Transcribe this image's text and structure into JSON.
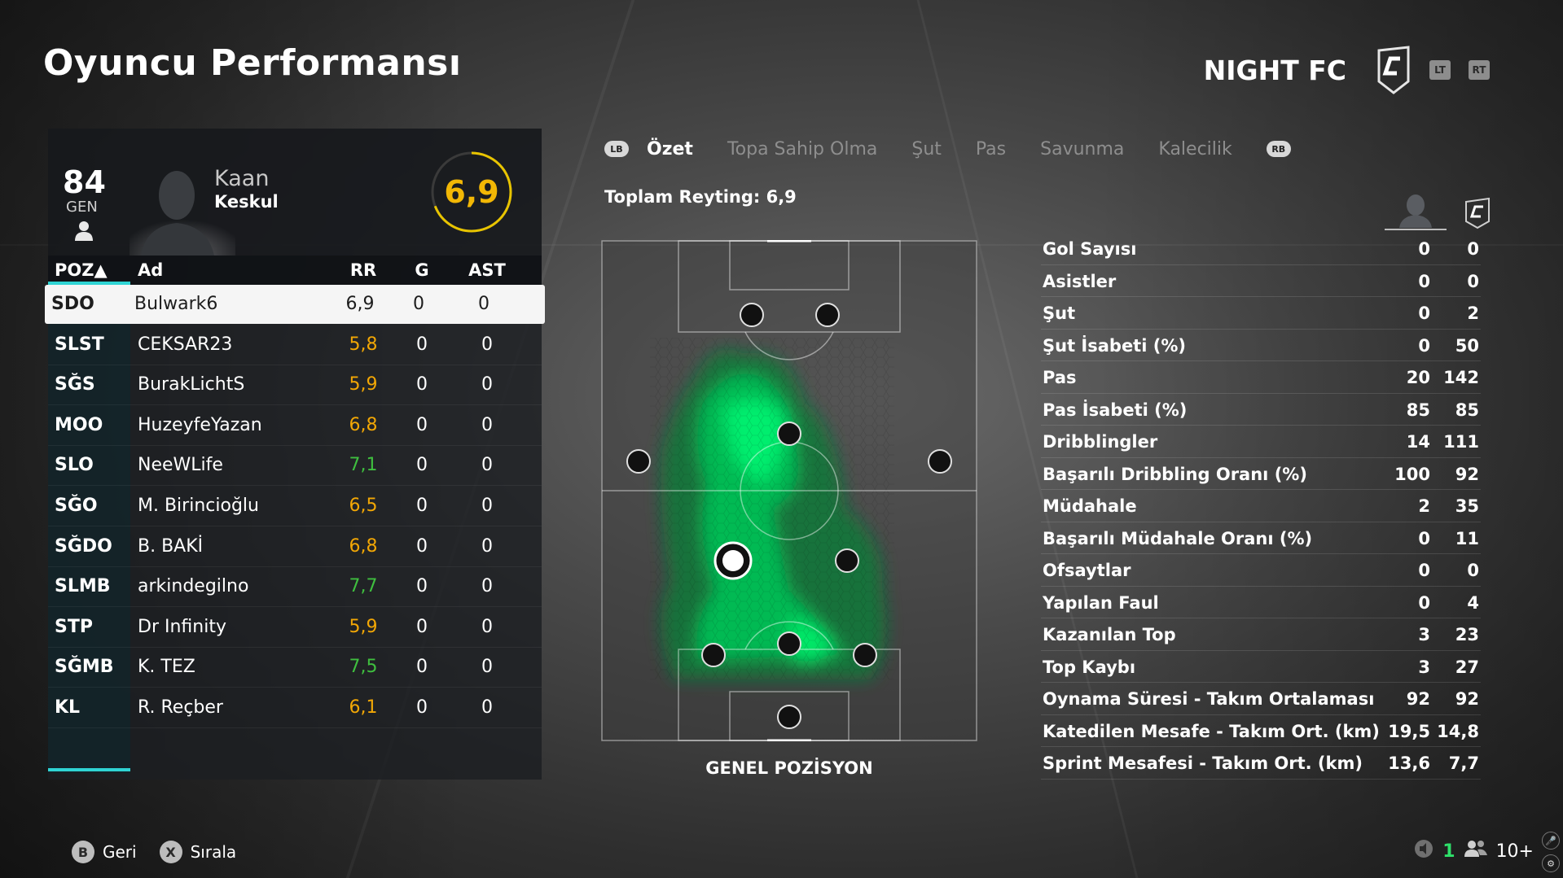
{
  "page": {
    "title": "Oyuncu Performansı"
  },
  "club": {
    "name": "NIGHT FC",
    "lt": "LT",
    "rt": "RT"
  },
  "player": {
    "gen_value": "84",
    "gen_label": "GEN",
    "first_name": "Kaan",
    "last_name": "Keskul",
    "rating": "6,9",
    "rating_fraction": 0.69
  },
  "table": {
    "headers": {
      "poz": "POZ▲",
      "ad": "Ad",
      "rr": "RR",
      "g": "G",
      "ast": "AST"
    },
    "rows": [
      {
        "poz": "SDO",
        "ad": "Bulwark6",
        "rr": "6,9",
        "g": "0",
        "ast": "0"
      },
      {
        "poz": "SLST",
        "ad": "CEKSAR23",
        "rr": "5,8",
        "g": "0",
        "ast": "0"
      },
      {
        "poz": "SĞS",
        "ad": "BurakLichtS",
        "rr": "5,9",
        "g": "0",
        "ast": "0"
      },
      {
        "poz": "MOO",
        "ad": "HuzeyfeYazan",
        "rr": "6,8",
        "g": "0",
        "ast": "0"
      },
      {
        "poz": "SLO",
        "ad": "NeeWLife",
        "rr": "7,1",
        "g": "0",
        "ast": "0"
      },
      {
        "poz": "SĞO",
        "ad": "M. Birincioğlu",
        "rr": "6,5",
        "g": "0",
        "ast": "0"
      },
      {
        "poz": "SĞDO",
        "ad": "B. BAKİ",
        "rr": "6,8",
        "g": "0",
        "ast": "0"
      },
      {
        "poz": "SLMB",
        "ad": "arkindegilno",
        "rr": "7,7",
        "g": "0",
        "ast": "0"
      },
      {
        "poz": "STP",
        "ad": "Dr Infinity",
        "rr": "5,9",
        "g": "0",
        "ast": "0"
      },
      {
        "poz": "SĞMB",
        "ad": "K. TEZ",
        "rr": "7,5",
        "g": "0",
        "ast": "0"
      },
      {
        "poz": "KL",
        "ad": "R. Reçber",
        "rr": "6,1",
        "g": "0",
        "ast": "0"
      }
    ]
  },
  "colors": {
    "rating_orange": "#f2a705",
    "rating_green": "#3fbf3f",
    "accent_cyan": "#2fd4d4",
    "heat_green": "#00e36a"
  },
  "tabs": {
    "lb": "LB",
    "rb": "RB",
    "items": [
      "Özet",
      "Topa Sahip Olma",
      "Şut",
      "Pas",
      "Savunma",
      "Kalecilik"
    ]
  },
  "summary": {
    "total_rating": "Toplam Reyting: 6,9",
    "pitch_label": "GENEL POZİSYON"
  },
  "stats": [
    {
      "label": "Gol Sayısı",
      "player": "0",
      "team": "0"
    },
    {
      "label": "Asistler",
      "player": "0",
      "team": "0"
    },
    {
      "label": "Şut",
      "player": "0",
      "team": "2"
    },
    {
      "label": "Şut İsabeti (%)",
      "player": "0",
      "team": "50"
    },
    {
      "label": "Pas",
      "player": "20",
      "team": "142"
    },
    {
      "label": "Pas İsabeti (%)",
      "player": "85",
      "team": "85"
    },
    {
      "label": "Dribblingler",
      "player": "14",
      "team": "111"
    },
    {
      "label": "Başarılı Dribbling Oranı (%)",
      "player": "100",
      "team": "92"
    },
    {
      "label": "Müdahale",
      "player": "2",
      "team": "35"
    },
    {
      "label": "Başarılı Müdahale Oranı (%)",
      "player": "0",
      "team": "11"
    },
    {
      "label": "Ofsaytlar",
      "player": "0",
      "team": "0"
    },
    {
      "label": "Yapılan Faul",
      "player": "0",
      "team": "4"
    },
    {
      "label": "Kazanılan Top",
      "player": "3",
      "team": "23"
    },
    {
      "label": "Top Kaybı",
      "player": "3",
      "team": "27"
    },
    {
      "label": "Oynama Süresi - Takım Ortalaması",
      "player": "92",
      "team": "92"
    },
    {
      "label": "Katedilen Mesafe - Takım Ort. (km)",
      "player": "19,5",
      "team": "14,8"
    },
    {
      "label": "Sprint Mesafesi - Takım Ort. (km)",
      "player": "13,6",
      "team": "7,7"
    }
  ],
  "footer": {
    "b_key": "B",
    "b_label": "Geri",
    "x_key": "X",
    "x_label": "Sırala"
  },
  "status": {
    "count": "1",
    "players": "10+"
  }
}
